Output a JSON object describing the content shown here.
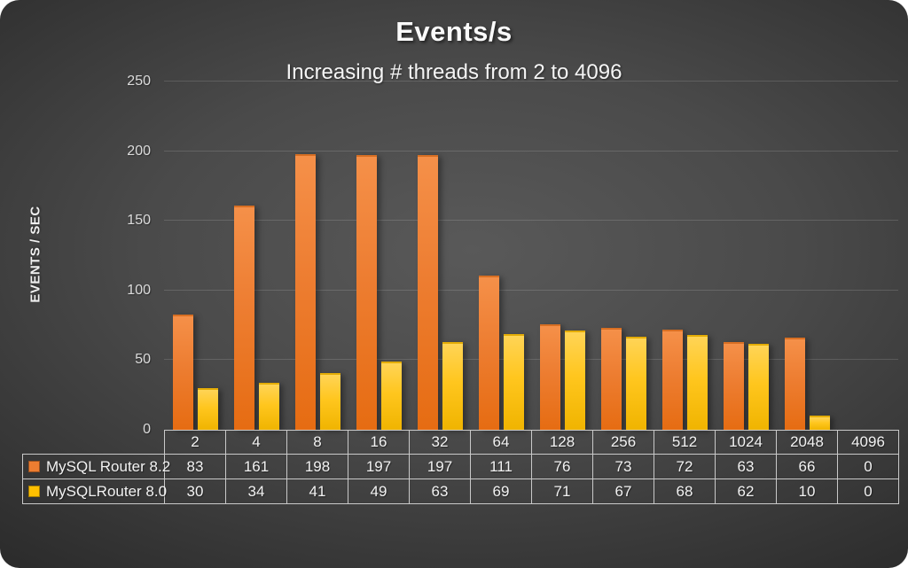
{
  "page": {
    "title": "Events/s",
    "subtitle": "Increasing # threads from 2 to 4096"
  },
  "chart_data": {
    "type": "bar",
    "title": "Events/s",
    "subtitle": "Increasing # threads from 2 to 4096",
    "xlabel": "",
    "ylabel": "EVENTS / SEC",
    "categories": [
      "2",
      "4",
      "8",
      "16",
      "32",
      "64",
      "128",
      "256",
      "512",
      "1024",
      "2048",
      "4096"
    ],
    "series": [
      {
        "name": "MySQL Router 8.2",
        "color": "#ED7D31",
        "values": [
          83,
          161,
          198,
          197,
          197,
          111,
          76,
          73,
          72,
          63,
          66,
          0
        ]
      },
      {
        "name": "MySQLRouter 8.0",
        "color": "#FFC000",
        "values": [
          30,
          34,
          41,
          49,
          63,
          69,
          71,
          67,
          68,
          62,
          10,
          0
        ]
      }
    ],
    "ylim": [
      0,
      250
    ],
    "yticks": [
      0,
      50,
      100,
      150,
      200,
      250
    ],
    "grid": "horizontal",
    "legend_position": "table-rows-left",
    "data_table_shown": true
  },
  "colors": {
    "series1": "#ED7D31",
    "series2": "#FFC000",
    "background_center": "#595959",
    "background_edge": "#252525",
    "text": "#F2F2F2",
    "gridline": "rgba(255,255,255,0.14)",
    "table_border": "#C9C9C9"
  }
}
